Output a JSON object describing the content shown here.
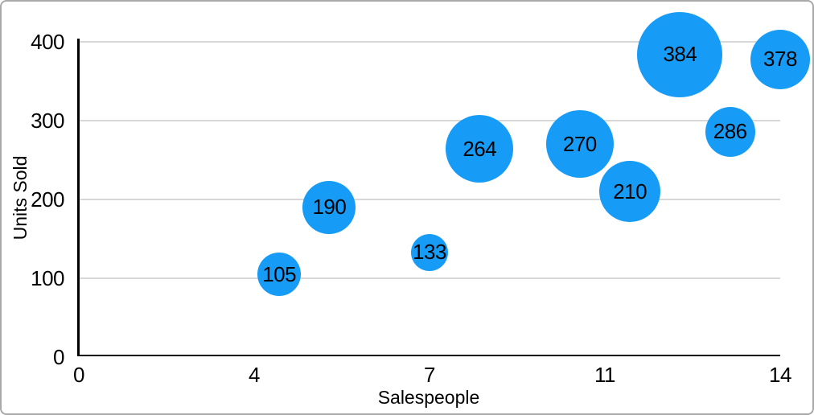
{
  "frame": {
    "border_color": "#a9a9a9",
    "background": "#ffffff"
  },
  "chart_data": {
    "type": "scatter",
    "variant": "bubble",
    "title": "",
    "xlabel": "Salespeople",
    "ylabel": "Units Sold",
    "xlim": [
      0,
      14
    ],
    "ylim": [
      0,
      400
    ],
    "grid": "horizontal-only",
    "legend_position": "none",
    "bubble_color": "#169cf6",
    "label_color": "#000000",
    "axis_color": "#000000",
    "gridline_color": "#d8d8d8",
    "x_ticks": [
      {
        "value": 0,
        "label": "0"
      },
      {
        "value": 3.5,
        "label": "4"
      },
      {
        "value": 7,
        "label": "7"
      },
      {
        "value": 10.5,
        "label": "11"
      },
      {
        "value": 14,
        "label": "14"
      }
    ],
    "y_ticks": [
      {
        "value": 0,
        "label": "0"
      },
      {
        "value": 100,
        "label": "100"
      },
      {
        "value": 200,
        "label": "200"
      },
      {
        "value": 300,
        "label": "300"
      },
      {
        "value": 400,
        "label": "400"
      }
    ],
    "points": [
      {
        "x": 4,
        "y": 105,
        "label": "105",
        "radius_px": 27
      },
      {
        "x": 5,
        "y": 190,
        "label": "190",
        "radius_px": 33
      },
      {
        "x": 7,
        "y": 133,
        "label": "133",
        "radius_px": 23
      },
      {
        "x": 8,
        "y": 264,
        "label": "264",
        "radius_px": 42
      },
      {
        "x": 10,
        "y": 270,
        "label": "270",
        "radius_px": 42
      },
      {
        "x": 11,
        "y": 210,
        "label": "210",
        "radius_px": 38
      },
      {
        "x": 12,
        "y": 384,
        "label": "384",
        "radius_px": 53
      },
      {
        "x": 13,
        "y": 286,
        "label": "286",
        "radius_px": 31
      },
      {
        "x": 14,
        "y": 378,
        "label": "378",
        "radius_px": 37
      }
    ]
  }
}
